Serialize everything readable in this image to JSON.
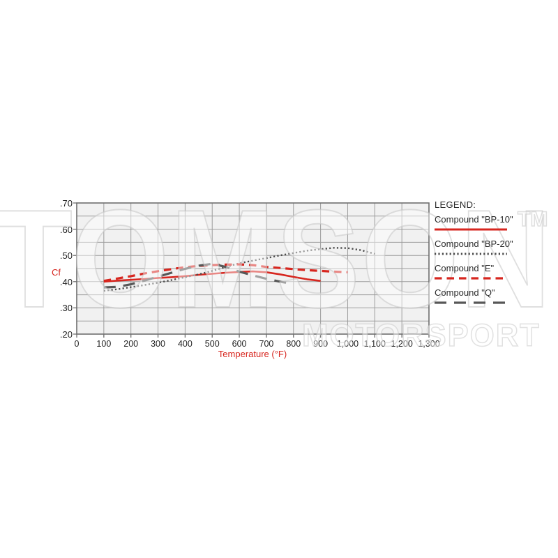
{
  "watermark": {
    "title": "TOMSON",
    "tm": "TM",
    "subtitle": "MOTORSPORT"
  },
  "legend": {
    "title": "LEGEND:",
    "items": [
      {
        "label": "Compound \"BP-10\"",
        "series_index": 0
      },
      {
        "label": "Compound \"BP-20\"",
        "series_index": 1
      },
      {
        "label": "Compound \"E\"",
        "series_index": 2
      },
      {
        "label": "Compound \"Q\"",
        "series_index": 3
      }
    ]
  },
  "chart_data": {
    "type": "line",
    "title": "",
    "xlabel": "Temperature (°F)",
    "ylabel": "Cf",
    "xlim": [
      0,
      1300
    ],
    "ylim": [
      0.2,
      0.7
    ],
    "grid": {
      "x_step": 100,
      "y_step": 0.05,
      "on": true
    },
    "legend_position": "right",
    "x_ticks": [
      {
        "v": 0,
        "label": "0"
      },
      {
        "v": 100,
        "label": "100"
      },
      {
        "v": 200,
        "label": "200"
      },
      {
        "v": 300,
        "label": "300"
      },
      {
        "v": 400,
        "label": "400"
      },
      {
        "v": 500,
        "label": "500"
      },
      {
        "v": 600,
        "label": "600"
      },
      {
        "v": 700,
        "label": "700"
      },
      {
        "v": 800,
        "label": "800"
      },
      {
        "v": 900,
        "label": "900"
      },
      {
        "v": 1000,
        "label": "1,000"
      },
      {
        "v": 1100,
        "label": "1,100"
      },
      {
        "v": 1200,
        "label": "1,200"
      },
      {
        "v": 1300,
        "label": "1,300"
      }
    ],
    "y_ticks": [
      {
        "v": 0.7,
        "label": ".70"
      },
      {
        "v": 0.6,
        "label": ".60"
      },
      {
        "v": 0.5,
        "label": ".50"
      },
      {
        "v": 0.4,
        "label": ".40"
      },
      {
        "v": 0.3,
        "label": ".30"
      },
      {
        "v": 0.2,
        "label": ".20"
      }
    ],
    "colors": {
      "red": "#d7261f",
      "gray_dark": "#4c4c4c",
      "gray_mid": "#575757",
      "grid": "#9c9c9c",
      "frame": "#6e6e6e",
      "plot_bg": "#f1f1f1"
    },
    "series": [
      {
        "name": "Compound \"BP-10\"",
        "color": "#d7261f",
        "style": "solid",
        "width": 2.6,
        "points": [
          [
            100,
            0.4
          ],
          [
            150,
            0.404
          ],
          [
            200,
            0.407
          ],
          [
            250,
            0.41
          ],
          [
            300,
            0.414
          ],
          [
            350,
            0.417
          ],
          [
            400,
            0.421
          ],
          [
            450,
            0.426
          ],
          [
            500,
            0.43
          ],
          [
            550,
            0.434
          ],
          [
            600,
            0.437
          ],
          [
            650,
            0.439
          ],
          [
            700,
            0.436
          ],
          [
            750,
            0.428
          ],
          [
            800,
            0.418
          ],
          [
            850,
            0.409
          ],
          [
            900,
            0.403
          ]
        ]
      },
      {
        "name": "Compound \"BP-20\"",
        "color": "#4c4c4c",
        "style": "dotted",
        "width": 2.4,
        "points": [
          [
            100,
            0.365
          ],
          [
            150,
            0.371
          ],
          [
            200,
            0.379
          ],
          [
            250,
            0.387
          ],
          [
            300,
            0.396
          ],
          [
            350,
            0.406
          ],
          [
            400,
            0.417
          ],
          [
            450,
            0.428
          ],
          [
            500,
            0.441
          ],
          [
            550,
            0.456
          ],
          [
            600,
            0.47
          ],
          [
            650,
            0.48
          ],
          [
            700,
            0.49
          ],
          [
            750,
            0.5
          ],
          [
            800,
            0.509
          ],
          [
            850,
            0.518
          ],
          [
            900,
            0.524
          ],
          [
            950,
            0.529
          ],
          [
            1000,
            0.528
          ],
          [
            1050,
            0.52
          ],
          [
            1100,
            0.506
          ]
        ]
      },
      {
        "name": "Compound \"E\"",
        "color": "#d7261f",
        "style": "dashed",
        "width": 3.2,
        "points": [
          [
            100,
            0.403
          ],
          [
            150,
            0.412
          ],
          [
            200,
            0.421
          ],
          [
            250,
            0.431
          ],
          [
            300,
            0.44
          ],
          [
            350,
            0.448
          ],
          [
            400,
            0.455
          ],
          [
            450,
            0.46
          ],
          [
            500,
            0.463
          ],
          [
            550,
            0.465
          ],
          [
            600,
            0.466
          ],
          [
            650,
            0.463
          ],
          [
            700,
            0.456
          ],
          [
            750,
            0.452
          ],
          [
            800,
            0.448
          ],
          [
            850,
            0.444
          ],
          [
            900,
            0.441
          ],
          [
            950,
            0.438
          ],
          [
            1000,
            0.436
          ]
        ]
      },
      {
        "name": "Compound \"Q\"",
        "color": "#575757",
        "style": "longdash",
        "width": 3.2,
        "points": [
          [
            100,
            0.378
          ],
          [
            150,
            0.38
          ],
          [
            200,
            0.39
          ],
          [
            250,
            0.404
          ],
          [
            300,
            0.419
          ],
          [
            350,
            0.434
          ],
          [
            400,
            0.449
          ],
          [
            450,
            0.461
          ],
          [
            500,
            0.468
          ],
          [
            550,
            0.456
          ],
          [
            600,
            0.438
          ],
          [
            650,
            0.424
          ],
          [
            700,
            0.411
          ],
          [
            750,
            0.4
          ],
          [
            790,
            0.393
          ]
        ]
      }
    ]
  }
}
